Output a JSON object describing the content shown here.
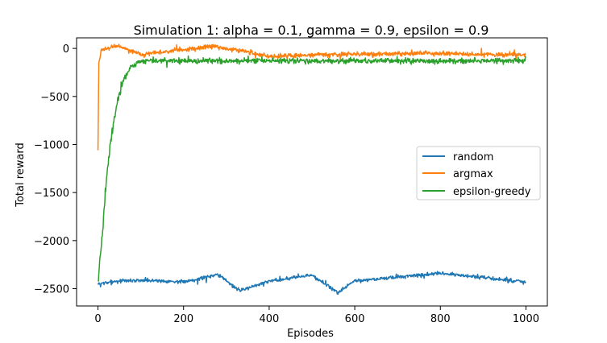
{
  "chart_data": {
    "type": "line",
    "title": "Simulation 1: alpha = 0.1, gamma = 0.9, epsilon = 0.9",
    "xlabel": "Episodes",
    "ylabel": "Total reward",
    "xlim": [
      -50,
      1050
    ],
    "ylim": [
      -2680,
      110
    ],
    "xticks": [
      0,
      200,
      400,
      600,
      800,
      1000
    ],
    "yticks": [
      0,
      -500,
      -1000,
      -1500,
      -2000,
      -2500
    ],
    "xtick_labels": [
      "0",
      "200",
      "400",
      "600",
      "800",
      "1000"
    ],
    "ytick_labels": [
      "0",
      "−500",
      "−1000",
      "−1500",
      "−2000",
      "−2500"
    ],
    "grid": false,
    "legend_position": "center-right",
    "episodes": 1000,
    "series": [
      {
        "name": "random",
        "color": "#1f77b4",
        "mean": -2420,
        "noise": 28,
        "samples": [
          {
            "x": 0,
            "y": -2450
          },
          {
            "x": 50,
            "y": -2420
          },
          {
            "x": 100,
            "y": -2410
          },
          {
            "x": 200,
            "y": -2430
          },
          {
            "x": 280,
            "y": -2350
          },
          {
            "x": 330,
            "y": -2520
          },
          {
            "x": 400,
            "y": -2420
          },
          {
            "x": 500,
            "y": -2360
          },
          {
            "x": 560,
            "y": -2540
          },
          {
            "x": 600,
            "y": -2420
          },
          {
            "x": 800,
            "y": -2340
          },
          {
            "x": 1000,
            "y": -2430
          }
        ]
      },
      {
        "name": "argmax",
        "color": "#ff7f0e",
        "mean": -70,
        "noise": 35,
        "samples": [
          {
            "x": 0,
            "y": -1060
          },
          {
            "x": 2,
            "y": -150
          },
          {
            "x": 8,
            "y": -20
          },
          {
            "x": 45,
            "y": 30
          },
          {
            "x": 100,
            "y": -60
          },
          {
            "x": 270,
            "y": 20
          },
          {
            "x": 400,
            "y": -80
          },
          {
            "x": 600,
            "y": -60
          },
          {
            "x": 800,
            "y": -50
          },
          {
            "x": 1000,
            "y": -70
          }
        ]
      },
      {
        "name": "epsilon-greedy",
        "color": "#2ca02c",
        "mean": -130,
        "noise": 40,
        "samples": [
          {
            "x": 0,
            "y": -2450
          },
          {
            "x": 5,
            "y": -2200
          },
          {
            "x": 10,
            "y": -1950
          },
          {
            "x": 20,
            "y": -1350
          },
          {
            "x": 30,
            "y": -950
          },
          {
            "x": 45,
            "y": -550
          },
          {
            "x": 60,
            "y": -320
          },
          {
            "x": 75,
            "y": -200
          },
          {
            "x": 100,
            "y": -130
          },
          {
            "x": 400,
            "y": -130
          },
          {
            "x": 700,
            "y": -130
          },
          {
            "x": 1000,
            "y": -130
          }
        ]
      }
    ]
  }
}
